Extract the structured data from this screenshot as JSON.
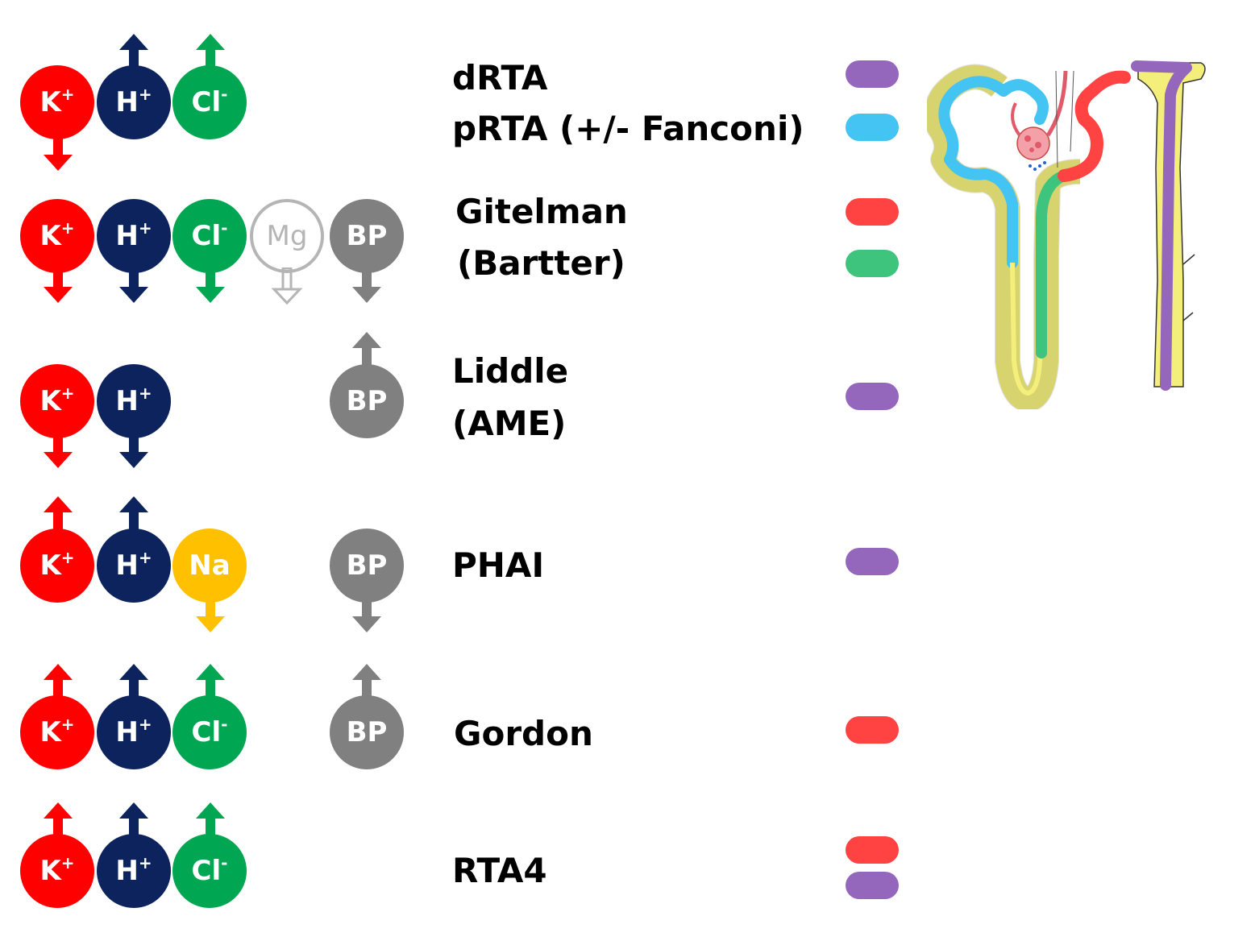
{
  "colors": {
    "K": "#ff0000",
    "H": "#0d235e",
    "Cl": "#00a651",
    "Na": "#ffc000",
    "BP": "#808080",
    "Mg": "#b5b5b5",
    "purple": "#9467bd",
    "blue": "#43c4f2",
    "red": "#ff4242",
    "green": "#3ec47c"
  },
  "rows": [
    {
      "id": "row1",
      "labels": [
        "dRTA",
        "pRTA (+/- Fanconi)"
      ],
      "pills": [
        "purple",
        "blue"
      ]
    },
    {
      "id": "row2",
      "labels": [
        "Gitelman",
        "(Bartter)"
      ],
      "pills": [
        "red",
        "green"
      ]
    },
    {
      "id": "row3",
      "labels": [
        "Liddle",
        "(AME)"
      ],
      "pills": [
        "purple"
      ]
    },
    {
      "id": "row4",
      "labels": [
        "PHAI"
      ],
      "pills": [
        "purple"
      ]
    },
    {
      "id": "row5",
      "labels": [
        "Gordon"
      ],
      "pills": [
        "red"
      ]
    },
    {
      "id": "row6",
      "labels": [
        "RTA4"
      ],
      "pills": [
        "red",
        "purple"
      ]
    }
  ],
  "ions": {
    "K": "K",
    "H": "H",
    "Cl": "Cl",
    "Na": "Na",
    "Mg": "Mg",
    "BP": "BP",
    "plus": "+",
    "minus": "-"
  },
  "changes": {
    "row1": {
      "K": "down",
      "H": "up",
      "Cl": "up"
    },
    "row2": {
      "K": "down",
      "H": "down",
      "Cl": "down",
      "Mg": "down",
      "BP": "down"
    },
    "row3": {
      "K": "down",
      "H": "down",
      "BP": "up"
    },
    "row4": {
      "K": "up",
      "H": "up",
      "Na": "down",
      "BP": "down"
    },
    "row5": {
      "K": "up",
      "H": "up",
      "Cl": "up",
      "BP": "up"
    },
    "row6": {
      "K": "up",
      "H": "up",
      "Cl": "up"
    }
  }
}
